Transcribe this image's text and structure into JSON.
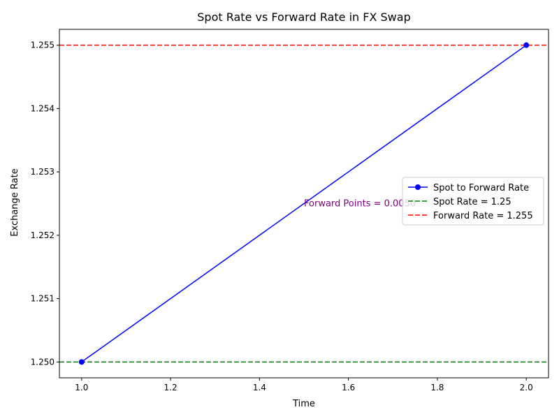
{
  "chart_data": {
    "type": "line",
    "title": "Spot Rate vs Forward Rate in FX Swap",
    "xlabel": "Time",
    "ylabel": "Exchange Rate",
    "xlim": [
      0.95,
      2.05
    ],
    "ylim": [
      1.24975,
      1.25525
    ],
    "x_ticks": [
      "1.0",
      "1.2",
      "1.4",
      "1.6",
      "1.8",
      "2.0"
    ],
    "y_ticks": [
      "1.250",
      "1.251",
      "1.252",
      "1.253",
      "1.254",
      "1.255"
    ],
    "grid": false,
    "legend_position": "center-right",
    "series": [
      {
        "name": "Spot to Forward Rate",
        "x": [
          1.0,
          2.0
        ],
        "y": [
          1.25,
          1.255
        ],
        "color": "#0000ff",
        "style": "solid",
        "marker": "circle"
      }
    ],
    "reference_lines": [
      {
        "name": "Spot Rate = 1.25",
        "y": 1.25,
        "color": "#008000",
        "style": "dashed"
      },
      {
        "name": "Forward Rate = 1.255",
        "y": 1.255,
        "color": "#ff0000",
        "style": "dashed"
      }
    ],
    "annotations": [
      {
        "text": "Forward Points = 0.0050",
        "x": 1.5,
        "y": 1.2525,
        "color": "#800080"
      }
    ]
  }
}
